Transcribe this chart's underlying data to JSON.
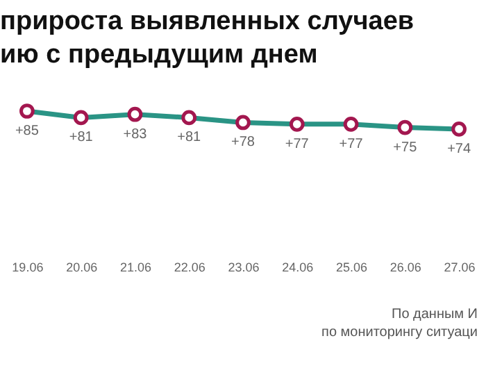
{
  "chart_data": {
    "type": "line",
    "title": "прироста выявленных случаев\nию с предыдущим днем",
    "categories": [
      "19.06",
      "20.06",
      "21.06",
      "22.06",
      "23.06",
      "24.06",
      "25.06",
      "26.06",
      "27.06"
    ],
    "series": [
      {
        "color": "#2a9485",
        "values": [
          85,
          81,
          83,
          81,
          78,
          77,
          77,
          75,
          74
        ],
        "value_labels": [
          "+85",
          "+81",
          "+83",
          "+81",
          "+78",
          "+77",
          "+77",
          "+75",
          "+74"
        ]
      }
    ],
    "marker": "circle",
    "tick_labels": "x",
    "grid": false,
    "annotations": [
      "По данным И\nпо мониторингу ситуаци"
    ]
  }
}
